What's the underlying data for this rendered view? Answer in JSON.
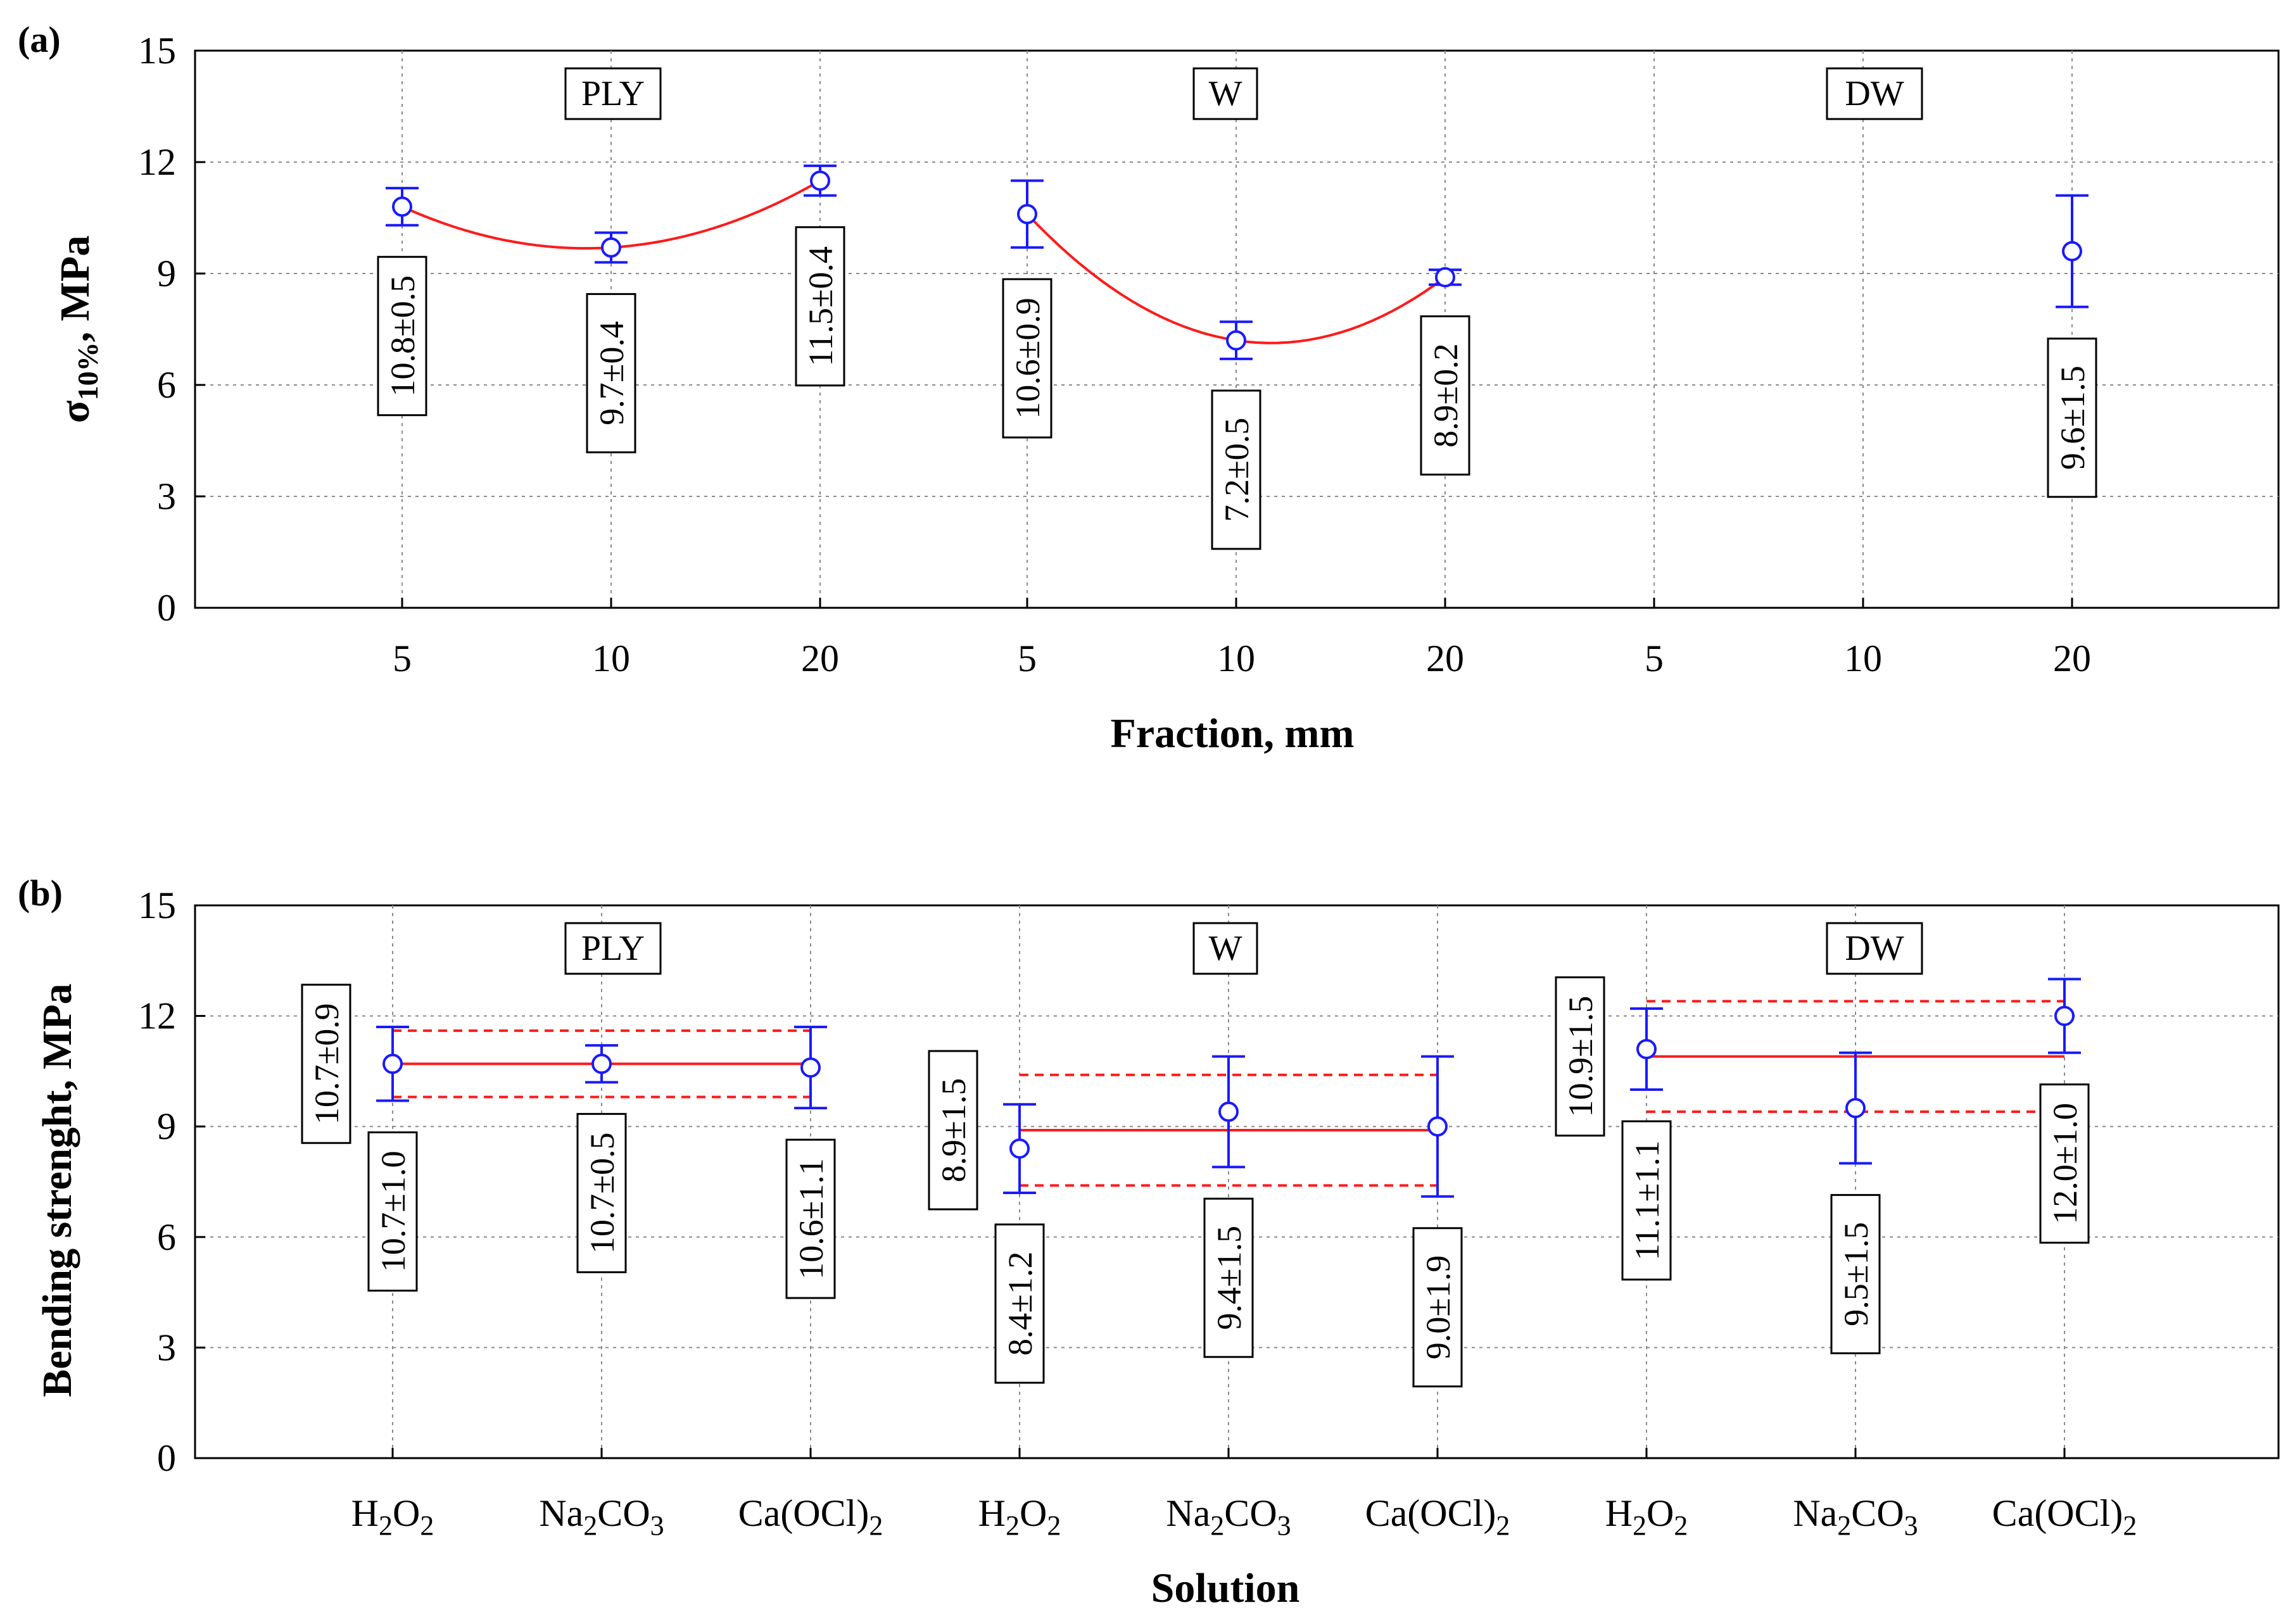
{
  "chart_data": [
    {
      "type": "scatter",
      "panel_label": "(a)",
      "ylabel_main": "σ",
      "ylabel_sub": "10%",
      "ylabel_tail": ", MPa",
      "xlabel": "Fraction, mm",
      "ylim": [
        0,
        15
      ],
      "yticks": [
        "0",
        "3",
        "6",
        "9",
        "12",
        "15"
      ],
      "grid": true,
      "groups": [
        "PLY",
        "W",
        "DW"
      ],
      "categories": [
        "5",
        "10",
        "20",
        "5",
        "10",
        "20",
        "5",
        "10",
        "20"
      ],
      "series": [
        {
          "name": "σ10%",
          "values": [
            10.8,
            9.7,
            11.5,
            10.6,
            7.2,
            8.9,
            null,
            null,
            9.6
          ],
          "errors": [
            0.5,
            0.4,
            0.4,
            0.9,
            0.5,
            0.2,
            null,
            null,
            1.5
          ],
          "labels": [
            "10.8±0.5",
            "9.7±0.4",
            "11.5±0.4",
            "10.6±0.9",
            "7.2±0.5",
            "8.9±0.2",
            "",
            "",
            "9.6±1.5"
          ]
        }
      ],
      "fit_curves": [
        {
          "group": "PLY",
          "type": "quadratic",
          "points": [
            10.8,
            9.7,
            11.5
          ]
        },
        {
          "group": "W",
          "type": "quadratic",
          "points": [
            10.6,
            7.2,
            8.9
          ]
        }
      ],
      "colors": {
        "markers": "#1a1aff",
        "fit": "#ff1a1a"
      }
    },
    {
      "type": "scatter",
      "panel_label": "(b)",
      "ylabel": "Bending strenght, MPa",
      "xlabel": "Solution",
      "ylim": [
        0,
        15
      ],
      "yticks": [
        "0",
        "3",
        "6",
        "9",
        "12",
        "15"
      ],
      "grid": true,
      "groups": [
        "PLY",
        "W",
        "DW"
      ],
      "categories": [
        [
          "H",
          "2",
          "O",
          "2",
          ""
        ],
        [
          "Na",
          "2",
          "CO",
          "3",
          ""
        ],
        [
          "Ca(OCl)",
          "2",
          "",
          "",
          ""
        ],
        [
          "H",
          "2",
          "O",
          "2",
          ""
        ],
        [
          "Na",
          "2",
          "CO",
          "3",
          ""
        ],
        [
          "Ca(OCl)",
          "2",
          "",
          "",
          ""
        ],
        [
          "H",
          "2",
          "O",
          "2",
          ""
        ],
        [
          "Na",
          "2",
          "CO",
          "3",
          ""
        ],
        [
          "Ca(OCl)",
          "2",
          "",
          "",
          ""
        ]
      ],
      "series": [
        {
          "name": "Bending strength",
          "values": [
            10.7,
            10.7,
            10.6,
            8.4,
            9.4,
            9.0,
            11.1,
            9.5,
            12.0
          ],
          "errors": [
            1.0,
            0.5,
            1.1,
            1.2,
            1.5,
            1.9,
            1.1,
            1.5,
            1.0
          ],
          "labels": [
            "10.7±1.0",
            "10.7±0.5",
            "10.6±1.1",
            "8.4±1.2",
            "9.4±1.5",
            "9.0±1.9",
            "11.1±1.1",
            "9.5±1.5",
            "12.0±1.0"
          ]
        }
      ],
      "group_means": [
        {
          "group": "PLY",
          "mean": 10.7,
          "sd": 0.9,
          "label": "10.7±0.9"
        },
        {
          "group": "W",
          "mean": 8.9,
          "sd": 1.5,
          "label": "8.9±1.5"
        },
        {
          "group": "DW",
          "mean": 10.9,
          "sd": 1.5,
          "label": "10.9±1.5"
        }
      ],
      "colors": {
        "markers": "#1a1aff",
        "mean_line": "#ff1a1a"
      }
    }
  ]
}
